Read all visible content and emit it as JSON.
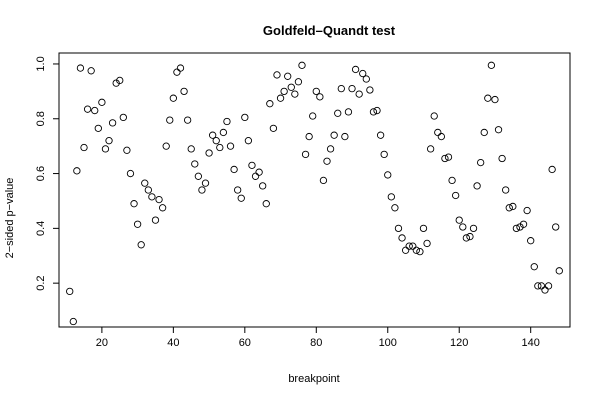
{
  "chart_data": {
    "type": "scatter",
    "title": "Goldfeld–Quandt test",
    "xlabel": "breakpoint",
    "ylabel": "2−sided p−value",
    "xlim": [
      8,
      151
    ],
    "ylim": [
      0.04,
      1.04
    ],
    "xticks": [
      20,
      40,
      60,
      80,
      100,
      120,
      140
    ],
    "yticks": [
      0.2,
      0.4,
      0.6,
      0.8,
      1.0
    ],
    "ytick_labels": [
      "0.2",
      "0.4",
      "0.6",
      "0.8",
      "1.0"
    ],
    "grid": false,
    "series": [
      {
        "x": [
          11,
          12,
          13,
          14,
          15,
          16,
          17,
          18,
          19,
          20,
          21,
          22,
          23,
          24,
          25,
          26,
          27,
          28,
          29,
          30,
          31,
          32,
          33,
          34,
          35,
          36,
          37,
          38,
          39,
          40,
          41,
          42,
          43,
          44,
          45,
          46,
          47,
          48,
          49,
          50,
          51,
          52,
          53,
          54,
          55,
          56,
          57,
          58,
          59,
          60,
          61,
          62,
          63,
          64,
          65,
          66,
          67,
          68,
          69,
          70,
          71,
          72,
          73,
          74,
          75,
          76,
          77,
          78,
          79,
          80,
          81,
          82,
          83,
          84,
          85,
          86,
          87,
          88,
          89,
          90,
          91,
          92,
          93,
          94,
          95,
          96,
          97,
          98,
          99,
          100,
          101,
          102,
          103,
          104,
          105,
          106,
          107,
          108,
          109,
          110,
          111,
          112,
          113,
          114,
          115,
          116,
          117,
          118,
          119,
          120,
          121,
          122,
          123,
          124,
          125,
          126,
          127,
          128,
          129,
          130,
          131,
          132,
          133,
          134,
          135,
          136,
          137,
          138,
          139,
          140,
          141,
          142,
          143,
          144,
          145,
          146,
          147,
          148
        ],
        "y": [
          0.17,
          0.06,
          0.61,
          0.985,
          0.695,
          0.835,
          0.975,
          0.83,
          0.765,
          0.86,
          0.69,
          0.72,
          0.785,
          0.93,
          0.94,
          0.805,
          0.685,
          0.6,
          0.49,
          0.415,
          0.34,
          0.565,
          0.54,
          0.515,
          0.43,
          0.505,
          0.475,
          0.7,
          0.795,
          0.875,
          0.97,
          0.985,
          0.9,
          0.795,
          0.69,
          0.635,
          0.59,
          0.54,
          0.565,
          0.675,
          0.74,
          0.72,
          0.695,
          0.75,
          0.79,
          0.7,
          0.615,
          0.54,
          0.51,
          0.805,
          0.72,
          0.63,
          0.59,
          0.605,
          0.555,
          0.49,
          0.855,
          0.765,
          0.96,
          0.875,
          0.9,
          0.955,
          0.915,
          0.89,
          0.935,
          0.995,
          0.67,
          0.735,
          0.81,
          0.9,
          0.88,
          0.575,
          0.645,
          0.69,
          0.74,
          0.82,
          0.91,
          0.735,
          0.825,
          0.91,
          0.98,
          0.89,
          0.965,
          0.945,
          0.905,
          0.825,
          0.83,
          0.74,
          0.67,
          0.595,
          0.515,
          0.475,
          0.4,
          0.365,
          0.32,
          0.335,
          0.335,
          0.32,
          0.315,
          0.4,
          0.345,
          0.69,
          0.81,
          0.75,
          0.735,
          0.655,
          0.66,
          0.575,
          0.52,
          0.43,
          0.405,
          0.365,
          0.37,
          0.4,
          0.555,
          0.64,
          0.75,
          0.875,
          0.995,
          0.87,
          0.76,
          0.655,
          0.54,
          0.475,
          0.48,
          0.4,
          0.405,
          0.415,
          0.465,
          0.355,
          0.26,
          0.19,
          0.19,
          0.175,
          0.19,
          0.615,
          0.405,
          0.245
        ]
      }
    ]
  }
}
